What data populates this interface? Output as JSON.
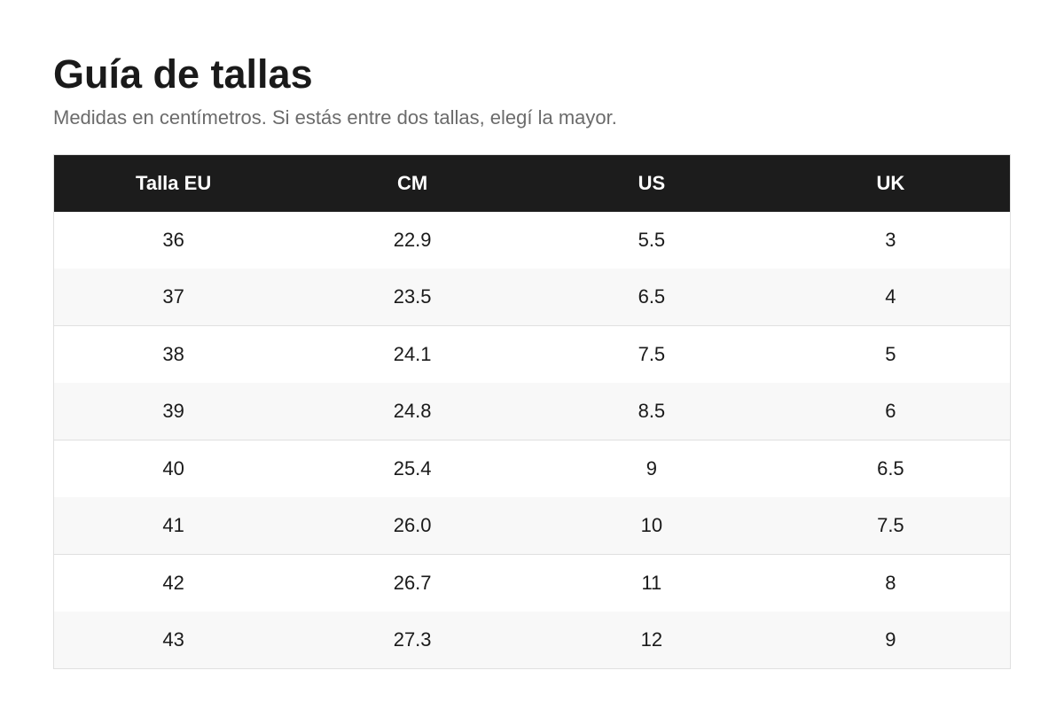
{
  "title": "Guía de tallas",
  "subtitle": "Medidas en centímetros. Si estás entre dos tallas, elegí la mayor.",
  "table": {
    "headers": [
      "Talla EU",
      "CM",
      "US",
      "UK"
    ],
    "rows": [
      [
        "36",
        "22.9",
        "5.5",
        "3"
      ],
      [
        "37",
        "23.5",
        "6.5",
        "4"
      ],
      [
        "38",
        "24.1",
        "7.5",
        "5"
      ],
      [
        "39",
        "24.8",
        "8.5",
        "6"
      ],
      [
        "40",
        "25.4",
        "9",
        "6.5"
      ],
      [
        "41",
        "26.0",
        "10",
        "7.5"
      ],
      [
        "42",
        "26.7",
        "11",
        "8"
      ],
      [
        "43",
        "27.3",
        "12",
        "9"
      ]
    ]
  },
  "colors": {
    "header_bg": "#1c1c1c",
    "header_text": "#ffffff",
    "row_alt_bg": "#f8f8f8",
    "subtitle_text": "#6b6b6b"
  }
}
